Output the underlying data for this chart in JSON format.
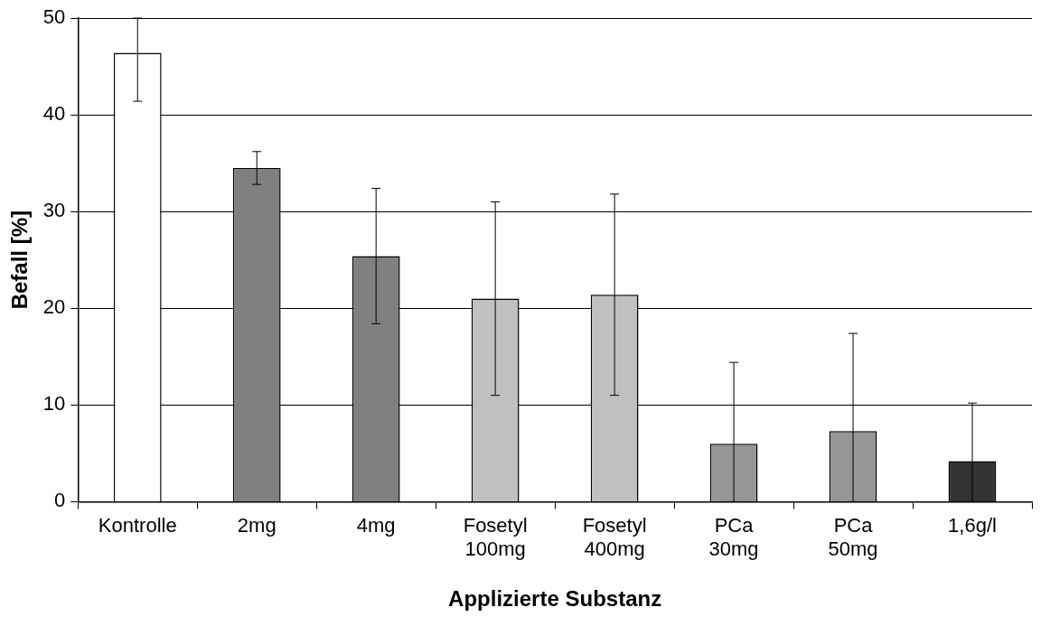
{
  "chart_data": {
    "type": "bar",
    "xlabel": "Applizierte Substanz",
    "ylabel": "Befall [%]",
    "categories": [
      "Kontrolle",
      "2mg",
      "4mg",
      "Fosetyl 100mg",
      "Fosetyl 400mg",
      "PCa 30mg",
      "PCa 50mg",
      "1,6g/l"
    ],
    "values": [
      46.4,
      34.5,
      25.4,
      21.0,
      21.4,
      6.0,
      7.3,
      4.2
    ],
    "colors": [
      "#ffffff",
      "#808080",
      "#808080",
      "#c0c0c0",
      "#c0c0c0",
      "#969696",
      "#969696",
      "#333333"
    ],
    "errors": [
      [
        41.4,
        50
      ],
      1.7,
      7.0,
      10.0,
      10.4,
      [
        0,
        14.4
      ],
      [
        0,
        17.4
      ],
      [
        0,
        10.2
      ]
    ],
    "ylim": [
      0,
      50
    ],
    "yticks": [
      0,
      10,
      20,
      30,
      40,
      50
    ],
    "grid": "y",
    "legend": false
  }
}
